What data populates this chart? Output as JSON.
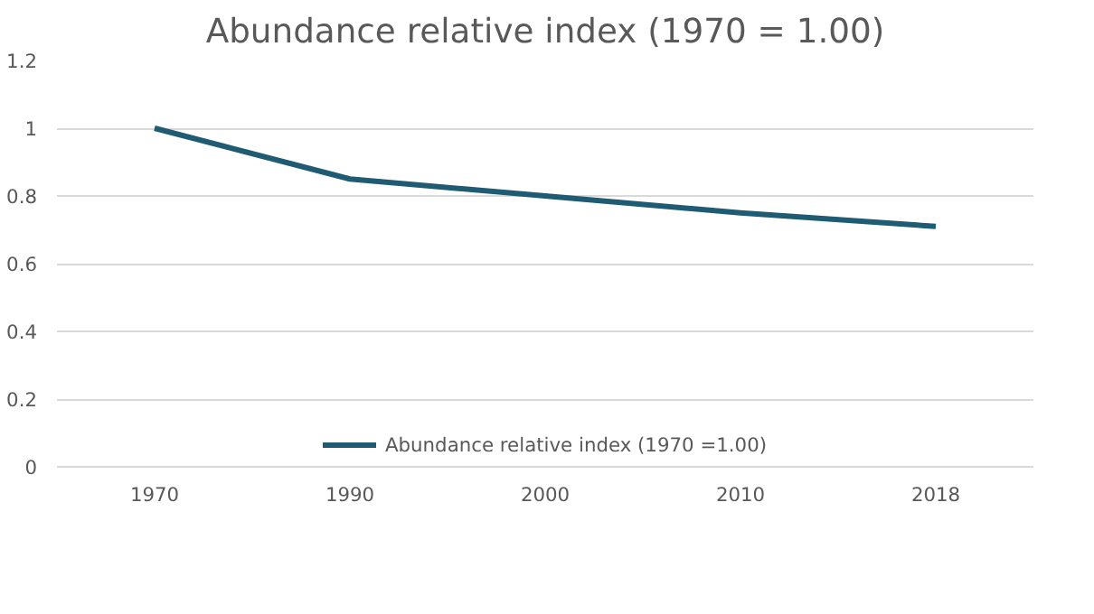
{
  "chart_data": {
    "type": "line",
    "title": "Abundance relative index (1970 = 1.00)",
    "categories": [
      "1970",
      "1990",
      "2000",
      "2010",
      "2018"
    ],
    "series": [
      {
        "name": "Abundance relative index (1970 =1.00)",
        "color": "#1f5b72",
        "values": [
          1,
          0.85,
          0.8,
          0.75,
          0.71
        ]
      }
    ],
    "ylim": [
      0,
      1.2
    ],
    "yticks": [
      0,
      0.2,
      0.4,
      0.6,
      0.8,
      1,
      1.2
    ],
    "grid": "y",
    "legend": "bottom",
    "marker": "none",
    "line_style": "solid"
  }
}
